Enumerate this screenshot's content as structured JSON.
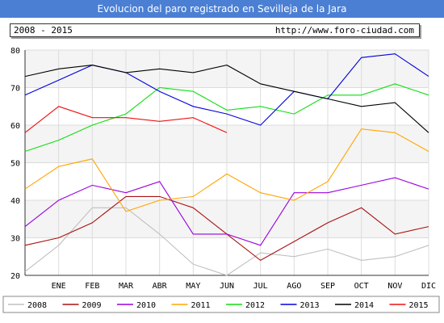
{
  "header": {
    "title": "Evolucion del paro registrado en Sevilleja de la Jara",
    "range": "2008 - 2015",
    "url": "http://www.foro-ciudad.com"
  },
  "chart_data": {
    "type": "line",
    "categories": [
      "",
      "ENE",
      "FEB",
      "MAR",
      "ABR",
      "MAY",
      "JUN",
      "JUL",
      "AGO",
      "SEP",
      "OCT",
      "NOV",
      "DIC"
    ],
    "ylim": [
      20,
      80
    ],
    "yticks": [
      20,
      30,
      40,
      50,
      60,
      70,
      80
    ],
    "grid": true,
    "legend": "bottom",
    "series": [
      {
        "name": "2008",
        "color": "#c0c0c0",
        "values": [
          21,
          28,
          38,
          38,
          31,
          23,
          20,
          26,
          25,
          27,
          24,
          25,
          28
        ]
      },
      {
        "name": "2009",
        "color": "#aa1111",
        "values": [
          28,
          30,
          34,
          41,
          41,
          38,
          31,
          24,
          29,
          34,
          38,
          31,
          33
        ]
      },
      {
        "name": "2010",
        "color": "#9900dd",
        "values": [
          33,
          40,
          44,
          42,
          45,
          31,
          31,
          28,
          42,
          42,
          44,
          46,
          43
        ]
      },
      {
        "name": "2011",
        "color": "#ffa500",
        "values": [
          43,
          49,
          51,
          37,
          40,
          41,
          47,
          42,
          40,
          45,
          59,
          58,
          53
        ]
      },
      {
        "name": "2012",
        "color": "#11dd11",
        "values": [
          53,
          56,
          60,
          63,
          70,
          69,
          64,
          65,
          63,
          68,
          68,
          71,
          68
        ]
      },
      {
        "name": "2013",
        "color": "#0000dd",
        "values": [
          68,
          72,
          76,
          74,
          69,
          65,
          63,
          60,
          69,
          67,
          78,
          79,
          73
        ]
      },
      {
        "name": "2014",
        "color": "#000000",
        "values": [
          73,
          75,
          76,
          74,
          75,
          74,
          76,
          71,
          69,
          67,
          65,
          66,
          58
        ]
      },
      {
        "name": "2015",
        "color": "#ee1111",
        "values": [
          58,
          65,
          62,
          62,
          61,
          62,
          58,
          null,
          null,
          null,
          null,
          null,
          null
        ]
      }
    ]
  }
}
